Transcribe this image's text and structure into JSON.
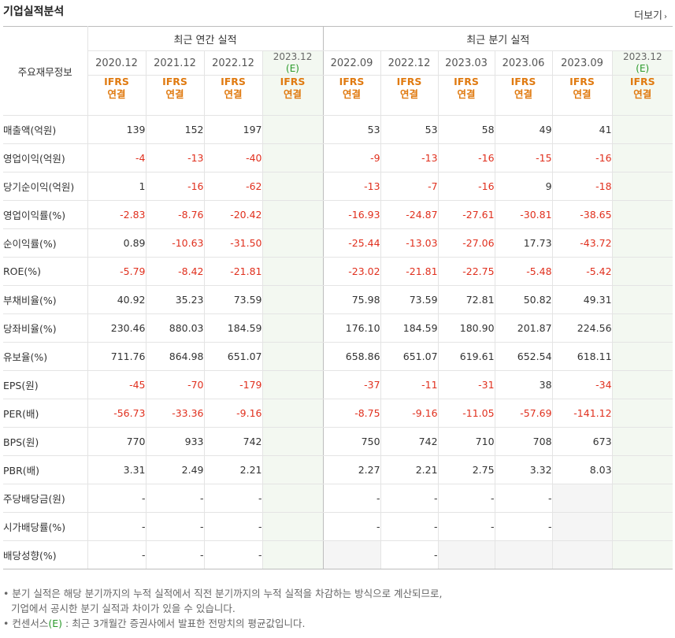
{
  "header": {
    "title": "기업실적분석",
    "more_label": "더보기"
  },
  "table": {
    "row_header_label": "주요재무정보",
    "groups": {
      "annual": "최근 연간 실적",
      "quarterly": "최근 분기 실적"
    },
    "annual_dates": [
      "2020.12",
      "2021.12",
      "2022.12"
    ],
    "quarter_dates": [
      "2022.09",
      "2022.12",
      "2023.03",
      "2023.06",
      "2023.09"
    ],
    "est_date": "2023.12",
    "est_mark": "(E)",
    "ifrs": "IFRS",
    "consolidated": "연결",
    "rows": [
      {
        "label": "매출액(억원)",
        "values": [
          "139",
          "152",
          "197",
          "",
          "53",
          "53",
          "58",
          "49",
          "41",
          ""
        ]
      },
      {
        "label": "영업이익(억원)",
        "values": [
          "-4",
          "-13",
          "-40",
          "",
          "-9",
          "-13",
          "-16",
          "-15",
          "-16",
          ""
        ]
      },
      {
        "label": "당기순이익(억원)",
        "values": [
          "1",
          "-16",
          "-62",
          "",
          "-13",
          "-7",
          "-16",
          "9",
          "-18",
          ""
        ]
      },
      {
        "label": "영업이익률(%)",
        "values": [
          "-2.83",
          "-8.76",
          "-20.42",
          "",
          "-16.93",
          "-24.87",
          "-27.61",
          "-30.81",
          "-38.65",
          ""
        ]
      },
      {
        "label": "순이익률(%)",
        "values": [
          "0.89",
          "-10.63",
          "-31.50",
          "",
          "-25.44",
          "-13.03",
          "-27.06",
          "17.73",
          "-43.72",
          ""
        ]
      },
      {
        "label": "ROE(%)",
        "values": [
          "-5.79",
          "-8.42",
          "-21.81",
          "",
          "-23.02",
          "-21.81",
          "-22.75",
          "-5.48",
          "-5.42",
          ""
        ]
      },
      {
        "label": "부채비율(%)",
        "values": [
          "40.92",
          "35.23",
          "73.59",
          "",
          "75.98",
          "73.59",
          "72.81",
          "50.82",
          "49.31",
          ""
        ]
      },
      {
        "label": "당좌비율(%)",
        "values": [
          "230.46",
          "880.03",
          "184.59",
          "",
          "176.10",
          "184.59",
          "180.90",
          "201.87",
          "224.56",
          ""
        ]
      },
      {
        "label": "유보율(%)",
        "values": [
          "711.76",
          "864.98",
          "651.07",
          "",
          "658.86",
          "651.07",
          "619.61",
          "652.54",
          "618.11",
          ""
        ]
      },
      {
        "label": "EPS(원)",
        "values": [
          "-45",
          "-70",
          "-179",
          "",
          "-37",
          "-11",
          "-31",
          "38",
          "-34",
          ""
        ]
      },
      {
        "label": "PER(배)",
        "values": [
          "-56.73",
          "-33.36",
          "-9.16",
          "",
          "-8.75",
          "-9.16",
          "-11.05",
          "-57.69",
          "-141.12",
          ""
        ]
      },
      {
        "label": "BPS(원)",
        "values": [
          "770",
          "933",
          "742",
          "",
          "750",
          "742",
          "710",
          "708",
          "673",
          ""
        ]
      },
      {
        "label": "PBR(배)",
        "values": [
          "3.31",
          "2.49",
          "2.21",
          "",
          "2.27",
          "2.21",
          "2.75",
          "3.32",
          "8.03",
          ""
        ]
      },
      {
        "label": "주당배당금(원)",
        "values": [
          "-",
          "-",
          "-",
          "",
          "-",
          "-",
          "-",
          "-",
          "",
          ""
        ]
      },
      {
        "label": "시가배당률(%)",
        "values": [
          "-",
          "-",
          "-",
          "",
          "-",
          "-",
          "-",
          "-",
          "",
          ""
        ]
      },
      {
        "label": "배당성향(%)",
        "values": [
          "-",
          "-",
          "-",
          "",
          "",
          "-",
          "",
          "",
          "",
          ""
        ]
      }
    ]
  },
  "notes": {
    "line1": "분기 실적은 해당 분기까지의 누적 실적에서 직전 분기까지의 누적 실적을 차감하는 방식으로 계산되므로,",
    "line2": "기업에서 공시한 분기 실적과 차이가 있을 수 있습니다.",
    "line3_pre": "컨센서스",
    "line3_mark": "(E)",
    "line3_post": " : 최근 3개월간 증권사에서 발표한 전망치의 평균값입니다."
  },
  "colors": {
    "negative": "#e0301e",
    "ifrs": "#e07a10",
    "estimate_mark": "#2a9a2a",
    "estimate_bg": "#f3f8f1"
  }
}
